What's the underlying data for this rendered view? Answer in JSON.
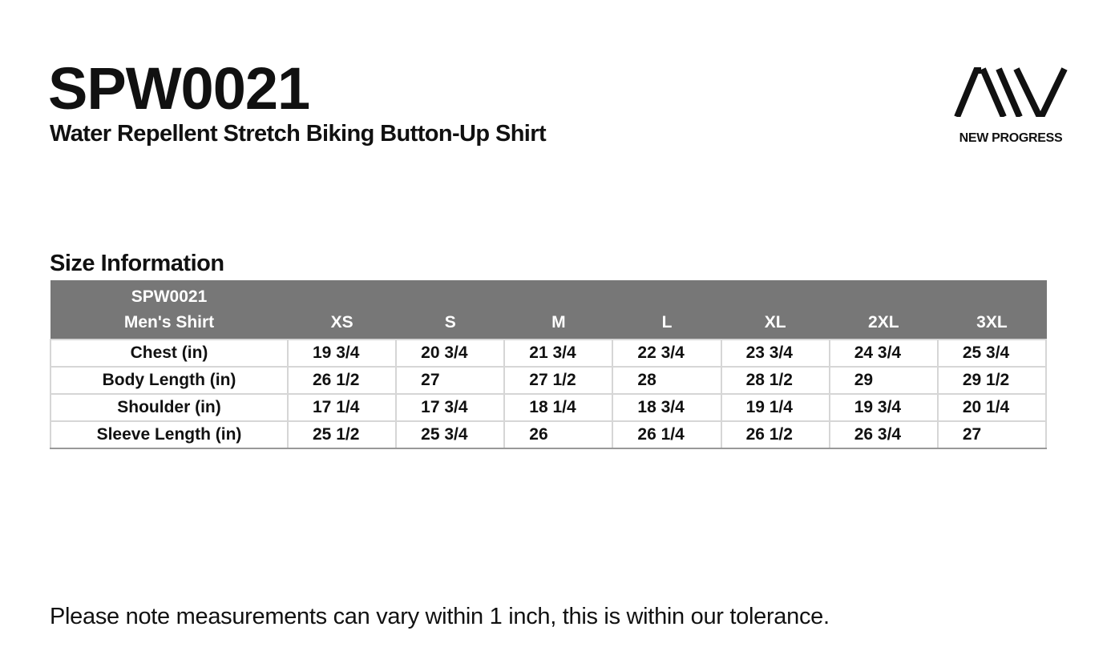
{
  "header": {
    "title": "SPW0021",
    "subtitle": "Water Repellent Stretch Biking Button-Up Shirt"
  },
  "logo": {
    "text": "NEW PROGRESS",
    "icon": "aiv-logo-icon"
  },
  "size_section": {
    "heading": "Size Information",
    "table": {
      "corner": [
        "SPW0021",
        "Men's Shirt"
      ],
      "sizes": [
        "XS",
        "S",
        "M",
        "L",
        "XL",
        "2XL",
        "3XL"
      ],
      "rows": [
        {
          "label": "Chest (in)",
          "values": [
            "19 3/4",
            "20 3/4",
            "21 3/4",
            "22 3/4",
            "23 3/4",
            "24 3/4",
            "25 3/4"
          ]
        },
        {
          "label": "Body Length (in)",
          "values": [
            "26 1/2",
            "27",
            "27 1/2",
            "28",
            "28 1/2",
            "29",
            "29 1/2"
          ]
        },
        {
          "label": "Shoulder (in)",
          "values": [
            "17 1/4",
            "17 3/4",
            "18 1/4",
            "18 3/4",
            "19 1/4",
            "19 3/4",
            "20 1/4"
          ]
        },
        {
          "label": "Sleeve Length (in)",
          "values": [
            "25 1/2",
            "25 3/4",
            "26",
            "26 1/4",
            "26 1/2",
            "26 3/4",
            "27"
          ]
        }
      ]
    }
  },
  "footer": {
    "note": "Please note measurements can vary within 1 inch, this is within our tolerance."
  },
  "colors": {
    "header_bg": "#777777",
    "text": "#111111",
    "grid": "#d6d6d6"
  }
}
